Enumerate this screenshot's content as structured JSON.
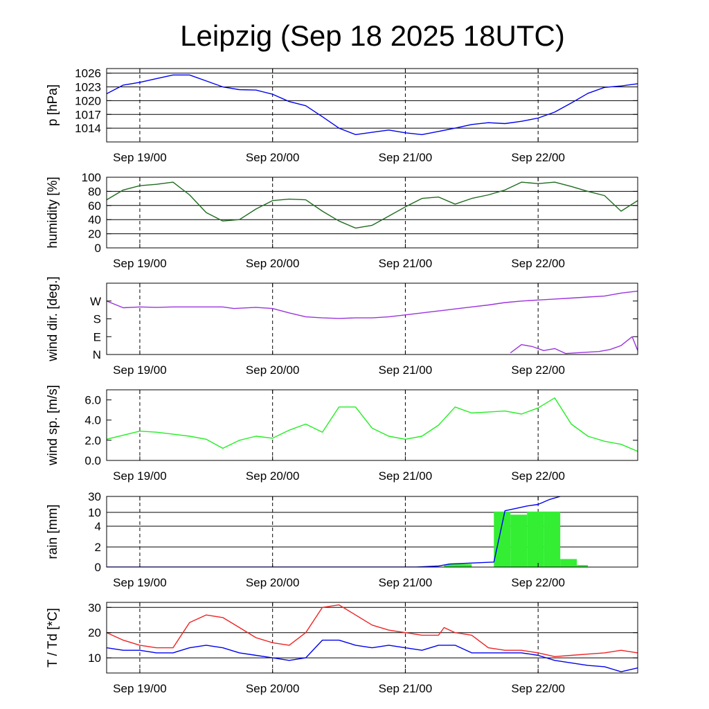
{
  "chart_data": {
    "type": "line",
    "title": "Leipzig (Sep 18 2025 18UTC)",
    "x_tick_labels": [
      "Sep 19/00",
      "Sep 20/00",
      "Sep 21/00",
      "Sep 22/00"
    ],
    "x_range_hours": [
      0,
      96
    ],
    "x_tick_hours": [
      6,
      30,
      54,
      78
    ],
    "panels": [
      {
        "id": "pressure",
        "ylabel": "p [hPa]",
        "ylim": [
          1011,
          1027
        ],
        "yticks": [
          1014,
          1017,
          1020,
          1023,
          1026
        ],
        "ytick_labels": [
          "1014",
          "1017",
          "1020",
          "1023",
          "1026"
        ],
        "grid_values": [
          1014,
          1017,
          1020,
          1023,
          1026
        ],
        "series": [
          {
            "name": "pressure",
            "color": "#0000ee",
            "x": [
              0,
              3,
              6,
              9,
              12,
              15,
              18,
              21,
              24,
              27,
              30,
              33,
              36,
              39,
              42,
              45,
              48,
              51,
              54,
              57,
              60,
              63,
              66,
              69,
              72,
              75,
              78,
              81,
              84,
              87,
              90,
              93,
              96
            ],
            "y": [
              1021.5,
              1023.4,
              1024.0,
              1024.8,
              1025.6,
              1025.6,
              1024.3,
              1023.0,
              1022.4,
              1022.3,
              1021.4,
              1019.8,
              1018.9,
              1016.5,
              1014.0,
              1012.6,
              1013.1,
              1013.6,
              1013.0,
              1012.6,
              1013.3,
              1014.0,
              1014.8,
              1015.2,
              1015.0,
              1015.5,
              1016.2,
              1017.5,
              1019.5,
              1021.6,
              1022.9,
              1023.2,
              1023.7
            ]
          }
        ]
      },
      {
        "id": "humidity",
        "ylabel": "humidity [%]",
        "ylim": [
          0,
          100
        ],
        "yticks": [
          0,
          20,
          40,
          60,
          80,
          100
        ],
        "ytick_labels": [
          "0",
          "20",
          "40",
          "60",
          "80",
          "100"
        ],
        "grid_values": [
          20,
          40,
          60,
          80
        ],
        "series": [
          {
            "name": "humidity",
            "color": "#1e6b1e",
            "x": [
              0,
              3,
              6,
              9,
              12,
              15,
              18,
              21,
              24,
              27,
              30,
              33,
              36,
              39,
              42,
              45,
              48,
              51,
              54,
              57,
              60,
              63,
              66,
              69,
              72,
              75,
              78,
              81,
              84,
              87,
              90,
              93,
              96
            ],
            "y": [
              68,
              82,
              88,
              90,
              93,
              75,
              50,
              38,
              40,
              55,
              67,
              69,
              68,
              52,
              38,
              28,
              32,
              45,
              58,
              70,
              72,
              62,
              70,
              75,
              82,
              93,
              91,
              93,
              87,
              80,
              74,
              52,
              67
            ]
          }
        ]
      },
      {
        "id": "winddir",
        "ylabel": "wind dir. [deg.]",
        "ylim": [
          0,
          360
        ],
        "yticks": [
          0,
          90,
          180,
          270
        ],
        "ytick_labels": [
          "N",
          "E",
          "S",
          "W"
        ],
        "grid_values": [],
        "series": [
          {
            "name": "wind direction",
            "color": "#9a33dd",
            "x": [
              0,
              3,
              6,
              9,
              12,
              15,
              18,
              21,
              23,
              27,
              30,
              33,
              36,
              39,
              42,
              45,
              48,
              51,
              54,
              57,
              60,
              63,
              66,
              69,
              72,
              75,
              78,
              81,
              84,
              87,
              90,
              93,
              96
            ],
            "y": [
              270,
              236,
              240,
              238,
              240,
              240,
              240,
              240,
              232,
              238,
              232,
              210,
              190,
              185,
              182,
              185,
              185,
              190,
              200,
              210,
              220,
              230,
              240,
              250,
              262,
              270,
              275,
              280,
              285,
              290,
              295,
              310,
              320
            ]
          },
          {
            "name": "wind direction (northerly)",
            "color": "#9a33dd",
            "x": [
              73,
              75,
              77,
              79,
              81,
              83,
              86,
              89,
              91,
              93,
              95,
              96
            ],
            "y": [
              8,
              50,
              40,
              20,
              30,
              5,
              10,
              15,
              25,
              45,
              90,
              20
            ]
          }
        ]
      },
      {
        "id": "windspeed",
        "ylabel": "wind sp. [m/s]",
        "ylim": [
          0,
          7
        ],
        "yticks": [
          0,
          2,
          4,
          6
        ],
        "ytick_labels": [
          "0.0",
          "2.0",
          "4.0",
          "6.0"
        ],
        "grid_values": [],
        "series": [
          {
            "name": "wind speed",
            "color": "#22ee22",
            "x": [
              0,
              3,
              6,
              9,
              12,
              15,
              18,
              21,
              24,
              27,
              30,
              33,
              36,
              39,
              42,
              45,
              48,
              51,
              54,
              57,
              60,
              63,
              66,
              69,
              72,
              75,
              78,
              81,
              84,
              87,
              90,
              93,
              96
            ],
            "y": [
              2.1,
              2.5,
              2.9,
              2.8,
              2.6,
              2.4,
              2.1,
              1.2,
              2.0,
              2.4,
              2.2,
              3.0,
              3.6,
              2.8,
              5.3,
              5.3,
              3.2,
              2.4,
              2.1,
              2.4,
              3.5,
              5.3,
              4.7,
              4.8,
              4.9,
              4.6,
              5.2,
              6.2,
              3.6,
              2.4,
              1.9,
              1.6,
              0.9
            ]
          }
        ]
      },
      {
        "id": "rain",
        "ylabel": "rain [mm]",
        "ylim": [
          0,
          30
        ],
        "yticks": [
          0,
          2,
          4,
          10,
          30
        ],
        "ytick_labels": [
          "0",
          "2",
          "4",
          "10",
          "30"
        ],
        "grid_values": [
          2,
          4,
          10,
          30
        ],
        "bars": {
          "color": "#33ee33",
          "x": [
            61,
            61.5,
            62,
            63,
            70,
            73,
            76,
            79,
            82,
            85
          ],
          "width": [
            1,
            1,
            2,
            3,
            3,
            3,
            3,
            3,
            3,
            2
          ],
          "values": [
            0.2,
            0.3,
            0.3,
            0.3,
            11,
            9,
            11,
            11,
            0.8,
            0.2
          ]
        },
        "series": [
          {
            "name": "accumulated rain",
            "color": "#0000ee",
            "x": [
              0,
              50,
              56,
              60,
              62,
              66,
              70,
              71,
              72,
              74,
              76,
              78,
              80,
              82
            ],
            "y": [
              0,
              0,
              0,
              0.1,
              0.3,
              0.4,
              0.5,
              3,
              12,
              15,
              18,
              20,
              26,
              31
            ]
          }
        ]
      },
      {
        "id": "temperature",
        "ylabel": "T / Td [*C]",
        "ylim": [
          4,
          32
        ],
        "yticks": [
          10,
          20,
          30
        ],
        "ytick_labels": [
          "10",
          "20",
          "30"
        ],
        "grid_values": [
          10,
          20,
          30
        ],
        "series": [
          {
            "name": "temperature",
            "color": "#ee2222",
            "x": [
              0,
              3,
              6,
              9,
              12,
              15,
              18,
              21,
              24,
              27,
              30,
              33,
              36,
              39,
              42,
              45,
              48,
              51,
              54,
              57,
              60,
              61,
              63,
              66,
              69,
              72,
              75,
              78,
              81,
              84,
              87,
              90,
              93,
              96
            ],
            "y": [
              20,
              17,
              15,
              14,
              14,
              24,
              27,
              26,
              22,
              18,
              16,
              15,
              20,
              30,
              31,
              27,
              23,
              21,
              20,
              19,
              19,
              22,
              20,
              19,
              14,
              13,
              13,
              12,
              10.5,
              11,
              11.5,
              12,
              13,
              12
            ]
          },
          {
            "name": "dew point",
            "color": "#0000ee",
            "x": [
              0,
              3,
              6,
              9,
              12,
              15,
              18,
              21,
              24,
              27,
              30,
              33,
              36,
              39,
              42,
              45,
              48,
              51,
              54,
              57,
              60,
              63,
              66,
              69,
              72,
              75,
              78,
              81,
              84,
              87,
              90,
              93,
              96
            ],
            "y": [
              14,
              13,
              13,
              12,
              12,
              14,
              15,
              14,
              12,
              11,
              10,
              9,
              10,
              17,
              17,
              15,
              14,
              15,
              14,
              13,
              15,
              15,
              12,
              12,
              12,
              12,
              11,
              9,
              8,
              7,
              6.5,
              4.5,
              6
            ]
          }
        ]
      }
    ]
  }
}
